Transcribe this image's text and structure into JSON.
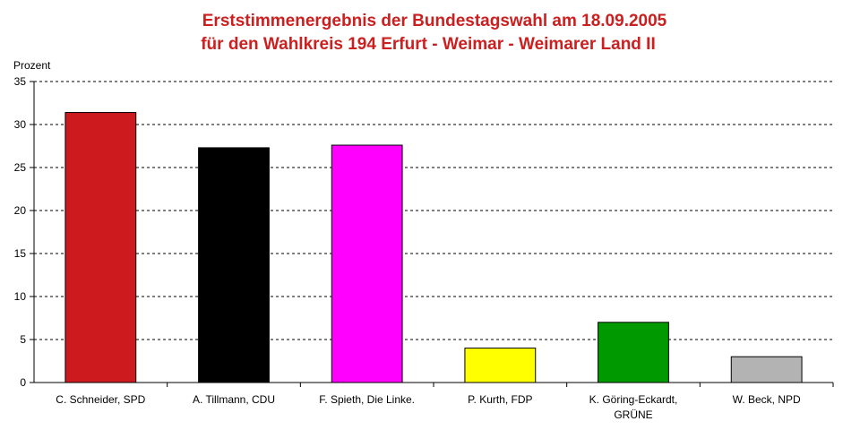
{
  "chart_data": {
    "type": "bar",
    "title": "Erststimmenergebnis der Bundestagswahl am 18.09.2005",
    "subtitle": "für den Wahlkreis 194 Erfurt - Weimar - Weimarer Land II",
    "ylabel": "Prozent",
    "xlabel": "",
    "ylim": [
      0,
      35
    ],
    "yticks": [
      0,
      5,
      10,
      15,
      20,
      25,
      30,
      35
    ],
    "grid": true,
    "legend": "none",
    "categories": [
      [
        "C. Schneider, SPD"
      ],
      [
        "A. Tillmann, CDU"
      ],
      [
        "F. Spieth, Die Linke."
      ],
      [
        "P. Kurth, FDP"
      ],
      [
        "K. Göring-Eckardt,",
        "GRÜNE"
      ],
      [
        "W. Beck, NPD"
      ]
    ],
    "values": [
      31.4,
      27.3,
      27.6,
      4.0,
      7.0,
      3.0
    ],
    "colors": [
      "#cc1a1f",
      "#000000",
      "#ff00ff",
      "#ffff00",
      "#009900",
      "#b3b3b3"
    ],
    "title_color": "#cc1f1f"
  }
}
